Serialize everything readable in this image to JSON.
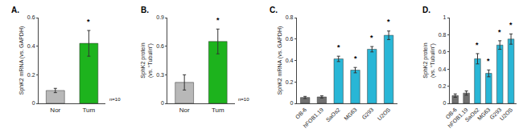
{
  "chart_data": [
    {
      "type": "bar",
      "title": "A.",
      "categories": [
        "Nor",
        "Tum"
      ],
      "values": [
        0.09,
        0.42
      ],
      "errors": [
        0.015,
        0.09
      ],
      "colors": [
        "#b8b8b8",
        "#1db31d"
      ],
      "ylabel": "SphK2 mRNA (vs. GAPDH)",
      "ylim": [
        0,
        0.6
      ],
      "yticks": [
        0,
        0.2,
        0.4,
        0.6
      ],
      "grid": false,
      "annotations": [
        {
          "text": "*",
          "category": "Tum"
        },
        {
          "text": "n=10"
        }
      ]
    },
    {
      "type": "bar",
      "title": "B.",
      "categories": [
        "Nor",
        "Tum"
      ],
      "values": [
        0.22,
        0.65
      ],
      "errors": [
        0.08,
        0.13
      ],
      "colors": [
        "#b8b8b8",
        "#1db31d"
      ],
      "ylabel": "SphK2 protein\n(vs. “Tubulin”)",
      "ylim": [
        0,
        0.9
      ],
      "yticks": [
        0,
        0.3,
        0.6,
        0.9
      ],
      "grid": false,
      "annotations": [
        {
          "text": "*",
          "category": "Tum"
        },
        {
          "text": "n=10"
        }
      ]
    },
    {
      "type": "bar",
      "title": "C.",
      "categories": [
        "OB-6",
        "hFOB1.19",
        "SaOs2",
        "MG63",
        "G293",
        "U2OS"
      ],
      "values": [
        0.055,
        0.06,
        0.415,
        0.31,
        0.505,
        0.635
      ],
      "errors": [
        0.01,
        0.01,
        0.025,
        0.025,
        0.025,
        0.04
      ],
      "colors": [
        "#707070",
        "#707070",
        "#29b6d6",
        "#29b6d6",
        "#29b6d6",
        "#29b6d6"
      ],
      "ylabel": "SphK2 mRNA (vs. GAPDH)",
      "ylim": [
        0,
        0.8
      ],
      "yticks": [
        0,
        0.2,
        0.4,
        0.6,
        0.8
      ],
      "grid": false,
      "annotations": [
        {
          "text": "*",
          "category": "SaOs2"
        },
        {
          "text": "*",
          "category": "MG63"
        },
        {
          "text": "*",
          "category": "G293"
        },
        {
          "text": "*",
          "category": "U2OS"
        }
      ]
    },
    {
      "type": "bar",
      "title": "D.",
      "categories": [
        "OB-6",
        "hFOB1.19",
        "SaOs2",
        "MG63",
        "G293",
        "U2OS"
      ],
      "values": [
        0.09,
        0.12,
        0.52,
        0.35,
        0.68,
        0.75
      ],
      "errors": [
        0.02,
        0.025,
        0.06,
        0.04,
        0.05,
        0.06
      ],
      "colors": [
        "#707070",
        "#707070",
        "#29b6d6",
        "#29b6d6",
        "#29b6d6",
        "#29b6d6"
      ],
      "ylabel": "SphK2 protein\n(vs. “Tubulin”)",
      "ylim": [
        0,
        1
      ],
      "yticks": [
        0,
        0.2,
        0.4,
        0.6,
        0.8,
        1
      ],
      "grid": false,
      "annotations": [
        {
          "text": "*",
          "category": "SaOs2"
        },
        {
          "text": "*",
          "category": "MG63"
        },
        {
          "text": "*",
          "category": "G293"
        },
        {
          "text": "*",
          "category": "U2OS"
        }
      ]
    }
  ]
}
